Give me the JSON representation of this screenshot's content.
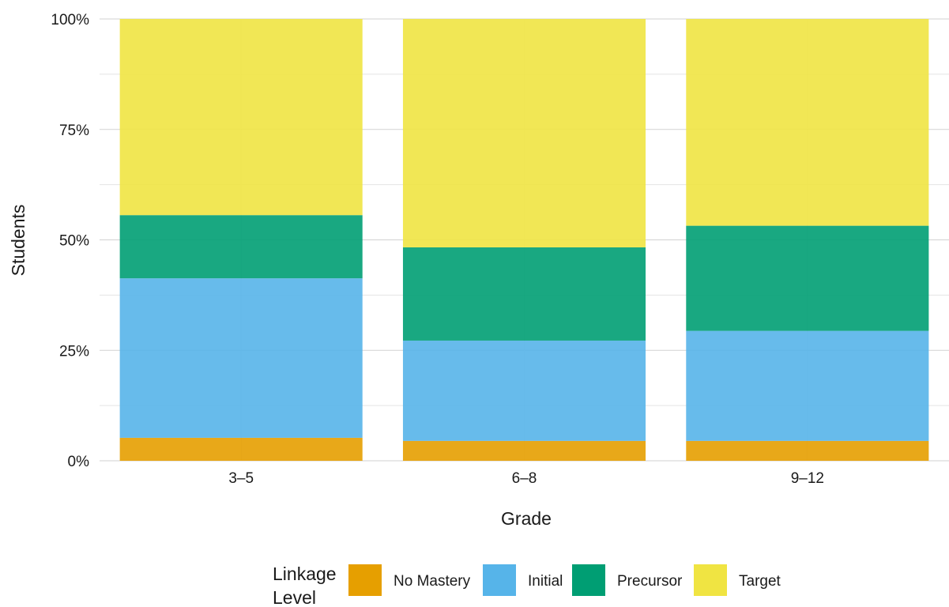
{
  "chart_data": {
    "type": "bar",
    "stacked": true,
    "categories": [
      "3–5",
      "6–8",
      "9–12"
    ],
    "series": [
      {
        "name": "No Mastery",
        "color": "#E69F00",
        "values": [
          5.2,
          4.5,
          4.5
        ]
      },
      {
        "name": "Initial",
        "color": "#56B4E9",
        "values": [
          36.1,
          22.7,
          24.9
        ]
      },
      {
        "name": "Precursor",
        "color": "#009E73",
        "values": [
          14.3,
          21.1,
          23.8
        ]
      },
      {
        "name": "Target",
        "color": "#F0E442",
        "values": [
          44.4,
          51.7,
          46.8
        ]
      }
    ],
    "xlabel": "Grade",
    "ylabel": "Students",
    "ylim": [
      0,
      100
    ],
    "yticks": [
      {
        "value": 0,
        "label": "0%"
      },
      {
        "value": 25,
        "label": "25%"
      },
      {
        "value": 50,
        "label": "50%"
      },
      {
        "value": 75,
        "label": "75%"
      },
      {
        "value": 100,
        "label": "100%"
      }
    ],
    "grid": true,
    "legend": {
      "position": "bottom",
      "title_lines": [
        "Linkage",
        "Level"
      ]
    }
  }
}
